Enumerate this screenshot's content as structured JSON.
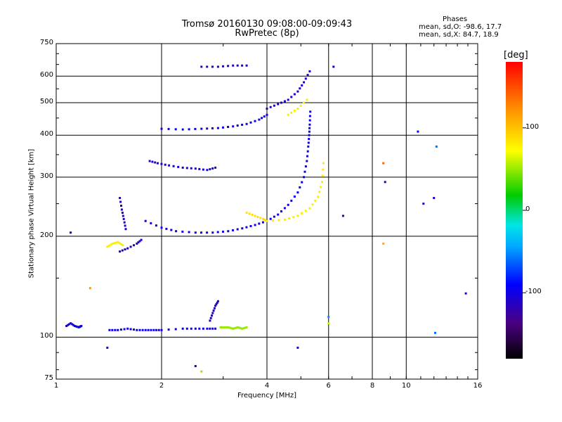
{
  "chart_data": {
    "type": "scatter",
    "title": "Tromsø 20160130 09:08:00-09:09:43",
    "subtitle": "RwPretec (8p)",
    "xlabel": "Frequency [MHz]",
    "ylabel": "Stationary phase Virtual Height [km]",
    "xscale": "log",
    "yscale": "log",
    "xlim": [
      1,
      16
    ],
    "ylim": [
      75,
      750
    ],
    "x_ticks": [
      "1",
      "2",
      "4",
      "6",
      "8",
      "10",
      "16"
    ],
    "x_tick_values": [
      1,
      2,
      4,
      6,
      8,
      10,
      16
    ],
    "y_ticks": [
      "75",
      "100",
      "200",
      "300",
      "400",
      "500",
      "600",
      "750"
    ],
    "y_tick_values": [
      75,
      100,
      200,
      300,
      400,
      500,
      600,
      750
    ],
    "grid": true,
    "phases_box": {
      "title": "Phases",
      "line_o": "mean, sd,O: -98.6, 17.7",
      "line_x": "mean, sd,X:  84.7, 18.9"
    },
    "colorbar": {
      "label": "[deg]",
      "ticks": [
        "100",
        "0",
        "-100"
      ],
      "tick_values": [
        100,
        0,
        -100
      ],
      "range": [
        -180,
        180
      ]
    },
    "traces": [
      {
        "name": "",
        "phase": -100,
        "points": [
          [
            1.07,
            108
          ],
          [
            1.1,
            110
          ],
          [
            1.13,
            108
          ],
          [
            1.16,
            107
          ],
          [
            1.18,
            108
          ]
        ]
      },
      {
        "name": "",
        "phase": -100,
        "points": [
          [
            1.42,
            105
          ],
          [
            1.5,
            105
          ],
          [
            1.6,
            106
          ],
          [
            1.7,
            105
          ],
          [
            1.8,
            105
          ],
          [
            1.9,
            105
          ],
          [
            2.0,
            105
          ],
          [
            2.3,
            106
          ],
          [
            2.5,
            106
          ],
          [
            2.7,
            106
          ],
          [
            2.85,
            106
          ]
        ]
      },
      {
        "name": "",
        "phase": -110,
        "points": [
          [
            2.75,
            112
          ],
          [
            2.8,
            118
          ],
          [
            2.85,
            124
          ],
          [
            2.9,
            128
          ]
        ]
      },
      {
        "name": "",
        "phase": 50,
        "points": [
          [
            2.95,
            107
          ],
          [
            3.0,
            107
          ],
          [
            3.1,
            107
          ],
          [
            3.2,
            106
          ],
          [
            3.3,
            107
          ],
          [
            3.4,
            106
          ],
          [
            3.5,
            107
          ]
        ]
      },
      {
        "name": "",
        "phase": 80,
        "points": [
          [
            1.4,
            186
          ],
          [
            1.45,
            190
          ],
          [
            1.5,
            192
          ],
          [
            1.55,
            188
          ]
        ]
      },
      {
        "name": "",
        "phase": -110,
        "points": [
          [
            1.52,
            180
          ],
          [
            1.6,
            184
          ],
          [
            1.7,
            190
          ],
          [
            1.75,
            195
          ]
        ]
      },
      {
        "name": "",
        "phase": -110,
        "points": [
          [
            1.52,
            260
          ],
          [
            1.54,
            240
          ],
          [
            1.56,
            225
          ],
          [
            1.58,
            210
          ]
        ]
      },
      {
        "name": "",
        "phase": -100,
        "points": [
          [
            1.8,
            222
          ],
          [
            2.0,
            212
          ],
          [
            2.2,
            207
          ],
          [
            2.5,
            205
          ],
          [
            2.8,
            205
          ],
          [
            3.1,
            207
          ],
          [
            3.4,
            211
          ],
          [
            3.7,
            216
          ],
          [
            4.0,
            222
          ]
        ]
      },
      {
        "name": "",
        "phase": 85,
        "points": [
          [
            3.5,
            235
          ],
          [
            3.7,
            230
          ],
          [
            3.9,
            225
          ],
          [
            4.0,
            222
          ]
        ]
      },
      {
        "name": "",
        "phase": -100,
        "points": [
          [
            4.0,
            222
          ],
          [
            4.3,
            232
          ],
          [
            4.6,
            248
          ],
          [
            4.9,
            270
          ],
          [
            5.1,
            300
          ],
          [
            5.2,
            335
          ],
          [
            5.25,
            370
          ],
          [
            5.28,
            400
          ],
          [
            5.3,
            430
          ],
          [
            5.32,
            470
          ]
        ]
      },
      {
        "name": "",
        "phase": 80,
        "points": [
          [
            4.0,
            222
          ],
          [
            4.5,
            224
          ],
          [
            4.9,
            230
          ],
          [
            5.3,
            242
          ],
          [
            5.6,
            262
          ],
          [
            5.75,
            290
          ],
          [
            5.8,
            330
          ]
        ]
      },
      {
        "name": "",
        "phase": -105,
        "points": [
          [
            1.85,
            335
          ],
          [
            1.95,
            330
          ],
          [
            2.1,
            325
          ],
          [
            2.3,
            320
          ],
          [
            2.5,
            318
          ],
          [
            2.7,
            315
          ],
          [
            2.85,
            320
          ]
        ]
      },
      {
        "name": "",
        "phase": -100,
        "points": [
          [
            2.0,
            418
          ],
          [
            2.3,
            416
          ],
          [
            2.6,
            418
          ],
          [
            2.9,
            420
          ],
          [
            3.2,
            425
          ],
          [
            3.5,
            432
          ],
          [
            3.8,
            445
          ],
          [
            4.0,
            460
          ]
        ]
      },
      {
        "name": "",
        "phase": -105,
        "points": [
          [
            4.0,
            480
          ],
          [
            4.3,
            495
          ],
          [
            4.6,
            510
          ],
          [
            4.9,
            540
          ],
          [
            5.1,
            575
          ],
          [
            5.3,
            620
          ]
        ]
      },
      {
        "name": "",
        "phase": 80,
        "points": [
          [
            4.6,
            460
          ],
          [
            4.9,
            480
          ],
          [
            5.2,
            510
          ]
        ]
      },
      {
        "name": "",
        "phase": -110,
        "points": [
          [
            2.6,
            640
          ],
          [
            2.9,
            640
          ],
          [
            3.2,
            645
          ],
          [
            3.5,
            645
          ]
        ]
      }
    ],
    "scattered_points": [
      {
        "x": 1.1,
        "y": 205,
        "phase": -100
      },
      {
        "x": 6.2,
        "y": 640,
        "phase": -90
      },
      {
        "x": 8.6,
        "y": 330,
        "phase": 140
      },
      {
        "x": 8.7,
        "y": 290,
        "phase": -100
      },
      {
        "x": 10.8,
        "y": 410,
        "phase": -90
      },
      {
        "x": 11.2,
        "y": 250,
        "phase": -110
      },
      {
        "x": 12.2,
        "y": 370,
        "phase": -60
      },
      {
        "x": 12.0,
        "y": 260,
        "phase": -110
      },
      {
        "x": 14.8,
        "y": 135,
        "phase": -110
      },
      {
        "x": 12.1,
        "y": 103,
        "phase": -60
      },
      {
        "x": 8.6,
        "y": 190,
        "phase": 110
      },
      {
        "x": 6.6,
        "y": 230,
        "phase": -110
      },
      {
        "x": 4.9,
        "y": 93,
        "phase": -100
      },
      {
        "x": 2.5,
        "y": 82,
        "phase": -100
      },
      {
        "x": 2.6,
        "y": 79,
        "phase": 50
      },
      {
        "x": 1.4,
        "y": 93,
        "phase": -110
      },
      {
        "x": 1.25,
        "y": 140,
        "phase": 120
      },
      {
        "x": 6.0,
        "y": 115,
        "phase": -50
      },
      {
        "x": 6.0,
        "y": 110,
        "phase": 60
      }
    ]
  }
}
